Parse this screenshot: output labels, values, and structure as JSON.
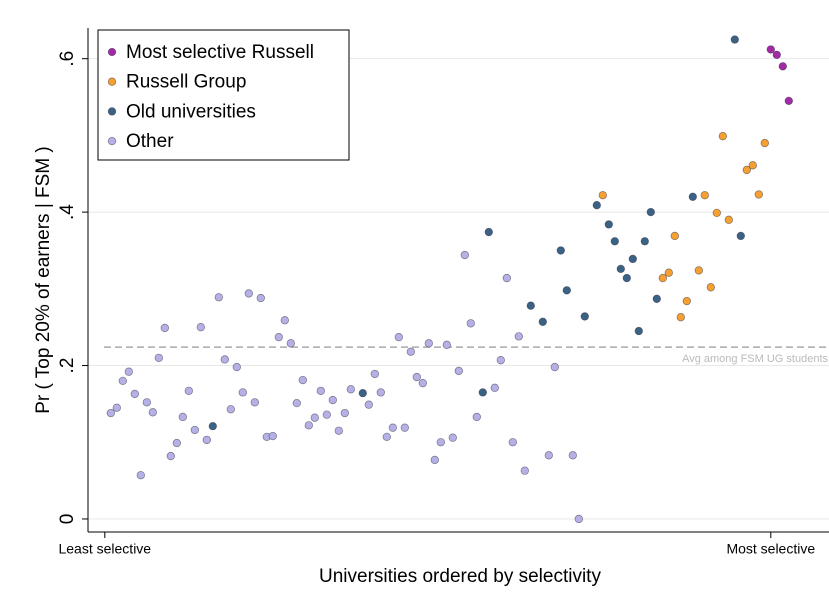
{
  "chart_data": {
    "type": "scatter",
    "x_label": "Universities ordered by selectivity",
    "y_label": "Pr ( Top 20% of earners | FSM )",
    "xlim": [
      -2.8,
      120.7
    ],
    "ylim": [
      -0.017,
      0.64
    ],
    "xticks": [
      {
        "value": 0,
        "label": "Least selective"
      },
      {
        "value": 111,
        "label": "Most selective"
      }
    ],
    "yticks": [
      0,
      {
        "value": 0.2,
        "label": ".2"
      },
      {
        "value": 0.4,
        "label": ".4"
      },
      {
        "value": 0.6,
        "label": ".6"
      }
    ],
    "grid": true,
    "legend": "top-left",
    "hline": {
      "value": 0.224,
      "label": "Avg among FSM UG students"
    },
    "series": [
      {
        "name": "Most selective Russell",
        "color": "#a22aa6",
        "x": [
          111,
          112,
          113,
          114
        ],
        "values": [
          0.612,
          0.605,
          0.59,
          0.545
        ]
      },
      {
        "name": "Russell Group",
        "color": "#f5a031",
        "x": [
          83,
          93,
          94,
          95,
          96,
          97,
          99,
          100,
          101,
          102,
          103,
          104,
          107,
          108,
          109,
          110
        ],
        "values": [
          0.422,
          0.314,
          0.321,
          0.369,
          0.263,
          0.284,
          0.324,
          0.422,
          0.302,
          0.399,
          0.499,
          0.39,
          0.455,
          0.461,
          0.423,
          0.49
        ]
      },
      {
        "name": "Old universities",
        "color": "#3a6285",
        "x": [
          18,
          43,
          63,
          64,
          71,
          73,
          76,
          77,
          80,
          82,
          84,
          85,
          86,
          87,
          88,
          89,
          90,
          91,
          92,
          98,
          105,
          106
        ],
        "values": [
          0.121,
          0.164,
          0.165,
          0.374,
          0.278,
          0.257,
          0.35,
          0.298,
          0.264,
          0.409,
          0.384,
          0.362,
          0.326,
          0.314,
          0.339,
          0.245,
          0.362,
          0.4,
          0.287,
          0.42,
          0.625,
          0.369
        ]
      },
      {
        "name": "Other",
        "color": "#b5b0e6",
        "x": [
          1,
          2,
          3,
          4,
          5,
          6,
          7,
          8,
          9,
          10,
          11,
          12,
          13,
          14,
          15,
          16,
          17,
          19,
          20,
          21,
          22,
          23,
          24,
          25,
          26,
          27,
          28,
          29,
          30,
          31,
          32,
          33,
          34,
          35,
          36,
          37,
          38,
          39,
          40,
          41,
          44,
          45,
          46,
          47,
          48,
          49,
          50,
          51,
          52,
          53,
          54,
          55,
          56,
          57,
          58,
          59,
          60,
          61,
          62,
          65,
          66,
          67,
          68,
          69,
          70,
          74,
          75,
          78,
          79
        ],
        "values": [
          0.138,
          0.145,
          0.18,
          0.192,
          0.163,
          0.057,
          0.152,
          0.139,
          0.21,
          0.249,
          0.082,
          0.099,
          0.133,
          0.167,
          0.116,
          0.25,
          0.103,
          0.289,
          0.208,
          0.143,
          0.198,
          0.165,
          0.294,
          0.152,
          0.288,
          0.107,
          0.108,
          0.237,
          0.259,
          0.229,
          0.151,
          0.181,
          0.122,
          0.132,
          0.167,
          0.136,
          0.155,
          0.115,
          0.138,
          0.169,
          0.149,
          0.189,
          0.165,
          0.107,
          0.119,
          0.237,
          0.119,
          0.218,
          0.185,
          0.177,
          0.229,
          0.077,
          0.1,
          0.227,
          0.106,
          0.193,
          0.344,
          0.255,
          0.133,
          0.171,
          0.207,
          0.314,
          0.1,
          0.238,
          0.063,
          0.083,
          0.198,
          0.083,
          0
        ]
      }
    ]
  }
}
